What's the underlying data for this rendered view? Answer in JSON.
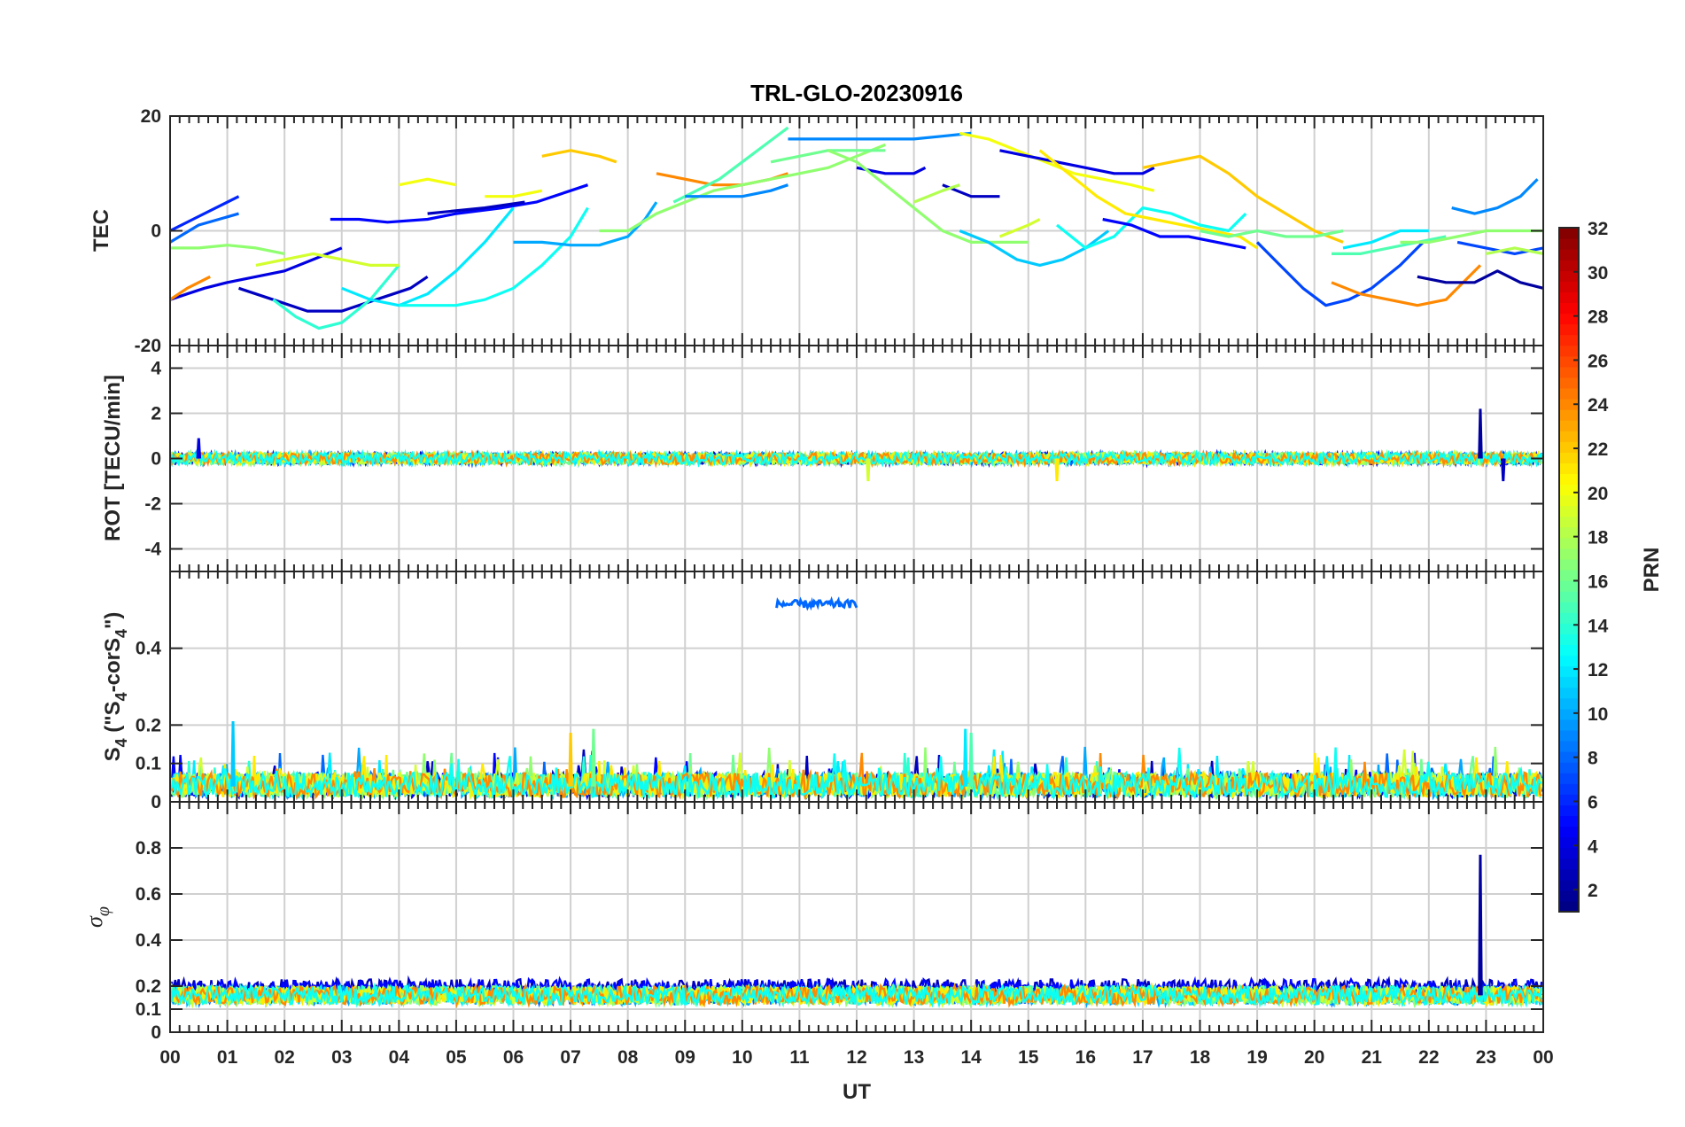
{
  "chart_data": {
    "type": "line",
    "title": "TRL-GLO-20230916",
    "xlabel": "UT",
    "x_ticks": [
      "00",
      "01",
      "02",
      "03",
      "04",
      "05",
      "06",
      "07",
      "08",
      "09",
      "10",
      "11",
      "12",
      "13",
      "14",
      "15",
      "16",
      "17",
      "18",
      "19",
      "20",
      "21",
      "22",
      "23",
      "00"
    ],
    "x_range": [
      0,
      24
    ],
    "grid": true,
    "panels": [
      {
        "id": "tec",
        "ylabel": "TEC",
        "ylim": [
          -20,
          20
        ],
        "y_ticks": [
          "20",
          "0",
          "-20"
        ],
        "y_tick_values": [
          20,
          0,
          -20
        ],
        "series": [
          {
            "prn": 4,
            "x": [
              0.0,
              0.3,
              0.6,
              1.0,
              1.5,
              2.0,
              2.5,
              3.0
            ],
            "y": [
              -12,
              -11,
              -10,
              -9,
              -8,
              -7,
              -5,
              -3
            ]
          },
          {
            "prn": 3,
            "x": [
              1.2,
              1.8,
              2.4,
              3.0,
              3.6,
              4.2,
              4.5
            ],
            "y": [
              -10,
              -12,
              -14,
              -14,
              -12,
              -10,
              -8
            ]
          },
          {
            "prn": 5,
            "x": [
              2.8,
              3.3,
              3.8,
              4.5,
              5.0,
              5.8,
              6.4,
              7.0,
              7.3
            ],
            "y": [
              2,
              2,
              1.5,
              2,
              3,
              4,
              5,
              7,
              8
            ]
          },
          {
            "prn": 3,
            "x": [
              4.5,
              5.5,
              6.2
            ],
            "y": [
              3,
              4,
              5
            ]
          },
          {
            "prn": 6,
            "x": [
              0.0,
              0.4,
              0.8,
              1.2
            ],
            "y": [
              0,
              2,
              4,
              6
            ]
          },
          {
            "prn": 8,
            "x": [
              0.0,
              0.5,
              1.2
            ],
            "y": [
              -2,
              1,
              3
            ]
          },
          {
            "prn": 14,
            "x": [
              1.8,
              2.2,
              2.6,
              3.0,
              3.5,
              4.0
            ],
            "y": [
              -12,
              -15,
              -17,
              -16,
              -12,
              -6
            ]
          },
          {
            "prn": 12,
            "x": [
              3.0,
              3.5,
              4.0,
              4.5,
              5.0,
              5.5,
              6.0
            ],
            "y": [
              -10,
              -12,
              -13,
              -11,
              -7,
              -2,
              4
            ]
          },
          {
            "prn": 13,
            "x": [
              4.0,
              4.5,
              5.0,
              5.5,
              6.0,
              6.5,
              7.0,
              7.3
            ],
            "y": [
              -13,
              -13,
              -13,
              -12,
              -10,
              -6,
              -1,
              4
            ]
          },
          {
            "prn": 10,
            "x": [
              6.0,
              6.5,
              7.0,
              7.5,
              8.0,
              8.3,
              8.5
            ],
            "y": [
              -2,
              -2,
              -2.5,
              -2.5,
              -1,
              2,
              5
            ]
          },
          {
            "prn": 17,
            "x": [
              0.0,
              0.5,
              1.0,
              1.5,
              2.0
            ],
            "y": [
              -3,
              -3,
              -2.5,
              -3,
              -4
            ]
          },
          {
            "prn": 19,
            "x": [
              1.5,
              2.0,
              2.5,
              3.0,
              3.5,
              4.0
            ],
            "y": [
              -6,
              -5,
              -4,
              -5,
              -6,
              -6
            ]
          },
          {
            "prn": 20,
            "x": [
              4.0,
              4.5,
              5.0
            ],
            "y": [
              8,
              9,
              8
            ]
          },
          {
            "prn": 20,
            "x": [
              5.5,
              6.0,
              6.5
            ],
            "y": [
              6,
              6,
              7
            ]
          },
          {
            "prn": 22,
            "x": [
              6.5,
              7.0,
              7.5,
              7.8
            ],
            "y": [
              13,
              14,
              13,
              12
            ]
          },
          {
            "prn": 24,
            "x": [
              0.0,
              0.3,
              0.7
            ],
            "y": [
              -12,
              -10,
              -8
            ]
          },
          {
            "prn": 24,
            "x": [
              8.5,
              9.0,
              9.5,
              10.0,
              10.5,
              10.8
            ],
            "y": [
              10,
              9,
              8,
              8,
              9,
              10
            ]
          },
          {
            "prn": 15,
            "x": [
              8.8,
              9.2,
              9.6,
              10.0,
              10.4,
              10.8
            ],
            "y": [
              5,
              7,
              9,
              12,
              15,
              18
            ]
          },
          {
            "prn": 17,
            "x": [
              7.5,
              8.0,
              8.5,
              9.0,
              9.5,
              10.0,
              10.5,
              11.0,
              11.5,
              12.0,
              12.5
            ],
            "y": [
              0,
              0,
              3,
              5,
              7,
              8,
              9,
              10,
              11,
              13,
              15
            ]
          },
          {
            "prn": 9,
            "x": [
              9.0,
              9.5,
              10.0,
              10.5,
              10.8
            ],
            "y": [
              6,
              6,
              6,
              7,
              8
            ]
          },
          {
            "prn": 9,
            "x": [
              10.8,
              11.5,
              12.0,
              12.5,
              13.0,
              13.5,
              14.0
            ],
            "y": [
              16,
              16,
              16,
              16,
              16,
              16.5,
              17
            ]
          },
          {
            "prn": 16,
            "x": [
              10.5,
              11.0,
              11.5,
              12.0,
              12.5
            ],
            "y": [
              12,
              13,
              14,
              14,
              14
            ]
          },
          {
            "prn": 4,
            "x": [
              12.0,
              12.5,
              13.0,
              13.2
            ],
            "y": [
              11,
              10,
              10,
              11
            ]
          },
          {
            "prn": 3,
            "x": [
              13.5,
              14.0,
              14.5
            ],
            "y": [
              8,
              6,
              6
            ]
          },
          {
            "prn": 17,
            "x": [
              11.5,
              12.0,
              12.5,
              13.0,
              13.5,
              14.0,
              14.5,
              15.0
            ],
            "y": [
              14,
              12,
              8,
              4,
              0,
              -2,
              -2,
              -2
            ]
          },
          {
            "prn": 18,
            "x": [
              13.0,
              13.5,
              13.8
            ],
            "y": [
              5,
              7,
              8
            ]
          },
          {
            "prn": 20,
            "x": [
              13.8,
              14.3,
              14.8,
              15.3,
              15.8,
              16.3,
              16.8,
              17.2
            ],
            "y": [
              17,
              16,
              14,
              12,
              10,
              9,
              8,
              7
            ]
          },
          {
            "prn": 4,
            "x": [
              14.5,
              15.0,
              15.5,
              16.0,
              16.5,
              17.0,
              17.2
            ],
            "y": [
              14,
              13,
              12,
              11,
              10,
              10,
              11
            ]
          },
          {
            "prn": 11,
            "x": [
              13.8,
              14.3,
              14.8,
              15.2,
              15.6,
              16.0,
              16.4
            ],
            "y": [
              0,
              -2,
              -5,
              -6,
              -5,
              -3,
              0
            ]
          },
          {
            "prn": 19,
            "x": [
              14.5,
              15.0,
              15.2
            ],
            "y": [
              -1,
              1,
              2
            ]
          },
          {
            "prn": 13,
            "x": [
              15.5,
              16.0,
              16.5,
              17.0,
              17.5,
              18.0,
              18.5,
              18.8
            ],
            "y": [
              1,
              -3,
              -1,
              4,
              3,
              1,
              0,
              3
            ]
          },
          {
            "prn": 5,
            "x": [
              16.3,
              16.8,
              17.3,
              17.8,
              18.3,
              18.8
            ],
            "y": [
              2,
              1,
              -1,
              -1,
              -2,
              -3
            ]
          },
          {
            "prn": 21,
            "x": [
              15.2,
              15.7,
              16.2,
              16.7,
              17.2,
              17.7,
              18.2,
              18.7,
              19.0
            ],
            "y": [
              14,
              10,
              6,
              3,
              2,
              1,
              0,
              -1,
              -3
            ]
          },
          {
            "prn": 22,
            "x": [
              17.0,
              17.5,
              18.0,
              18.5,
              19.0,
              19.5,
              20.0,
              20.5
            ],
            "y": [
              11,
              12,
              13,
              10,
              6,
              3,
              0,
              -2
            ]
          },
          {
            "prn": 16,
            "x": [
              18.0,
              18.5,
              19.0,
              19.5,
              20.0,
              20.5
            ],
            "y": [
              0,
              -1,
              0,
              -1,
              -1,
              0
            ]
          },
          {
            "prn": 7,
            "x": [
              19.0,
              19.4,
              19.8,
              20.2,
              20.6,
              21.0,
              21.5,
              21.9
            ],
            "y": [
              -2,
              -6,
              -10,
              -13,
              -12,
              -10,
              -6,
              -2
            ]
          },
          {
            "prn": 24,
            "x": [
              20.3,
              20.8,
              21.3,
              21.8,
              22.3,
              22.6,
              22.9
            ],
            "y": [
              -9,
              -11,
              -12,
              -13,
              -12,
              -9,
              -6
            ]
          },
          {
            "prn": 12,
            "x": [
              20.5,
              21.0,
              21.5,
              22.0
            ],
            "y": [
              -3,
              -2,
              0,
              0
            ]
          },
          {
            "prn": 15,
            "x": [
              20.3,
              20.8,
              21.3,
              21.8,
              22.3
            ],
            "y": [
              -4,
              -4,
              -3,
              -2,
              -1
            ]
          },
          {
            "prn": 17,
            "x": [
              21.5,
              22.0,
              22.5,
              23.0,
              23.5,
              24.0
            ],
            "y": [
              -2,
              -2,
              -1,
              0,
              0,
              0
            ]
          },
          {
            "prn": 2,
            "x": [
              21.8,
              22.3,
              22.8,
              23.2,
              23.6,
              24.0
            ],
            "y": [
              -8,
              -9,
              -9,
              -7,
              -9,
              -10
            ]
          },
          {
            "prn": 9,
            "x": [
              22.4,
              22.8,
              23.2,
              23.6,
              23.9
            ],
            "y": [
              4,
              3,
              4,
              6,
              9
            ]
          },
          {
            "prn": 7,
            "x": [
              22.5,
              23.0,
              23.5,
              24.0
            ],
            "y": [
              -2,
              -3,
              -4,
              -3
            ]
          },
          {
            "prn": 18,
            "x": [
              23.0,
              23.5,
              24.0
            ],
            "y": [
              -4,
              -3,
              -4
            ]
          }
        ]
      },
      {
        "id": "rot",
        "ylabel": "ROT [TECU/min]",
        "ylim": [
          -5,
          5
        ],
        "y_ticks": [
          "4",
          "2",
          "0",
          "-2",
          "-4"
        ],
        "y_tick_values": [
          4,
          2,
          0,
          -2,
          -4
        ],
        "noise": {
          "baseline": 0,
          "amplitude": 0.25
        },
        "spikes": [
          {
            "x": 0.5,
            "y": 0.9,
            "prn": 4
          },
          {
            "x": 12.2,
            "y": -1.0,
            "prn": 19
          },
          {
            "x": 15.5,
            "y": -1.0,
            "prn": 21
          },
          {
            "x": 22.9,
            "y": 2.2,
            "prn": 2
          },
          {
            "x": 23.3,
            "y": -1.0,
            "prn": 3
          }
        ]
      },
      {
        "id": "s4",
        "ylabel": "S4 (\"S4-corS4\")",
        "ylim": [
          0,
          0.6
        ],
        "y_ticks": [
          "0.4",
          "0.2",
          "0.1",
          "0"
        ],
        "y_tick_values": [
          0.4,
          0.2,
          0.1,
          0
        ],
        "noise": {
          "baseline": 0.04,
          "amplitude": 0.04
        },
        "segment": {
          "prn": 8,
          "x": [
            10.6,
            12.0
          ],
          "y": 0.515
        },
        "spikes": [
          {
            "x": 1.1,
            "y": 0.21,
            "prn": 11
          },
          {
            "x": 7.0,
            "y": 0.18,
            "prn": 22
          },
          {
            "x": 7.4,
            "y": 0.19,
            "prn": 16
          },
          {
            "x": 13.9,
            "y": 0.19,
            "prn": 12
          },
          {
            "x": 14.0,
            "y": 0.18,
            "prn": 15
          }
        ]
      },
      {
        "id": "sigma",
        "ylabel": "σφ",
        "ylabel_main": "σ",
        "ylabel_sub": "φ",
        "ylim": [
          0,
          1.0
        ],
        "y_ticks": [
          "0.8",
          "0.6",
          "0.4",
          "0.2",
          "0.1",
          "0"
        ],
        "y_tick_values": [
          0.8,
          0.6,
          0.4,
          0.2,
          0.1,
          0
        ],
        "noise": {
          "baseline": 0.16,
          "amplitude": 0.04
        },
        "spikes": [
          {
            "x": 22.9,
            "y": 0.77,
            "prn": 2
          }
        ]
      }
    ],
    "colorbar": {
      "label": "PRN",
      "range": [
        1,
        32
      ],
      "ticks": [
        "32",
        "30",
        "28",
        "26",
        "24",
        "22",
        "20",
        "18",
        "16",
        "14",
        "12",
        "10",
        "8",
        "6",
        "4",
        "2"
      ],
      "tick_values": [
        32,
        30,
        28,
        26,
        24,
        22,
        20,
        18,
        16,
        14,
        12,
        10,
        8,
        6,
        4,
        2
      ],
      "colormap": "jet"
    }
  }
}
